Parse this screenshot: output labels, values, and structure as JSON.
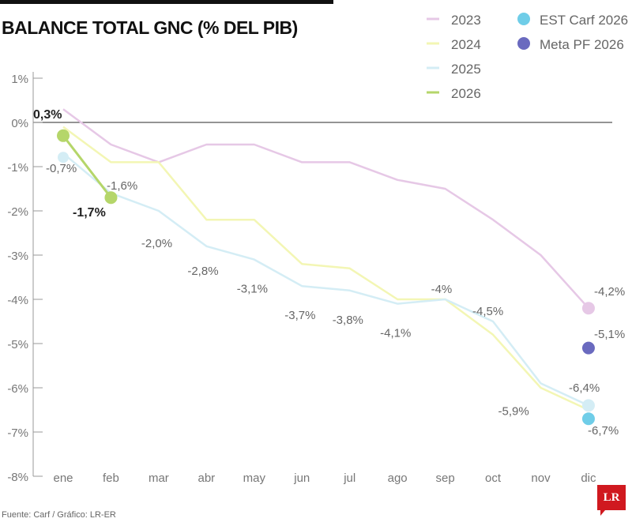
{
  "title": "BALANCE TOTAL GNC (% DEL PIB)",
  "footer": "Fuente: Carf / Gráfico: LR-ER",
  "logo": "LR",
  "chart_data": {
    "type": "line",
    "title": "BALANCE TOTAL GNC (% DEL PIB)",
    "categories": [
      "ene",
      "feb",
      "mar",
      "abr",
      "may",
      "jun",
      "jul",
      "ago",
      "sep",
      "oct",
      "nov",
      "dic"
    ],
    "ylim": [
      -8,
      1
    ],
    "yticks": [
      1,
      0,
      -1,
      -2,
      -3,
      -4,
      -5,
      -6,
      -7,
      -8
    ],
    "ytick_labels": [
      "1%",
      "0%",
      "-1%",
      "-2%",
      "-3%",
      "-4%",
      "-5%",
      "-6%",
      "-7%",
      "-8%"
    ],
    "grid": false,
    "legend_placement": "top-right",
    "series": [
      {
        "name": "2023",
        "color": "#e6c8e6",
        "values": [
          0.3,
          -0.5,
          -0.9,
          -0.5,
          -0.5,
          -0.9,
          -0.9,
          -1.3,
          -1.5,
          -2.2,
          -3.0,
          -4.2
        ]
      },
      {
        "name": "2024",
        "color": "#f3f6b4",
        "values": [
          -0.1,
          -0.9,
          -0.9,
          -2.2,
          -2.2,
          -3.2,
          -3.3,
          -4.0,
          -4.0,
          -4.8,
          -6.0,
          -6.5
        ]
      },
      {
        "name": "2025",
        "color": "#d4edf5",
        "values": [
          -0.7,
          -1.6,
          -2.0,
          -2.8,
          -3.1,
          -3.7,
          -3.8,
          -4.1,
          -4.0,
          -4.5,
          -5.9,
          -6.4
        ]
      },
      {
        "name": "2026",
        "color": "#b5d66a",
        "values": [
          -0.3,
          -1.7,
          null,
          null,
          null,
          null,
          null,
          null,
          null,
          null,
          null,
          null
        ]
      }
    ],
    "points": [
      {
        "name": "EST Carf 2026",
        "color": "#6fcde8",
        "category": "dic",
        "value": -6.7
      },
      {
        "name": "Meta PF 2026",
        "color": "#6a6abf",
        "category": "dic",
        "value": -5.1
      }
    ],
    "annotations": [
      {
        "text": "0,3%",
        "bold": true,
        "category": "ene",
        "value": 0.3
      },
      {
        "text": "-0,7%",
        "bold": false,
        "category": "ene",
        "value": -0.7
      },
      {
        "text": "-1,6%",
        "bold": false,
        "category": "feb",
        "value": -1.6
      },
      {
        "text": "-1,7%",
        "bold": true,
        "category": "feb",
        "value": -1.7
      },
      {
        "text": "-2,0%",
        "bold": false,
        "category": "mar",
        "value": -2.0
      },
      {
        "text": "-2,8%",
        "bold": false,
        "category": "abr",
        "value": -2.8
      },
      {
        "text": "-3,1%",
        "bold": false,
        "category": "may",
        "value": -3.1
      },
      {
        "text": "-3,7%",
        "bold": false,
        "category": "jun",
        "value": -3.7
      },
      {
        "text": "-3,8%",
        "bold": false,
        "category": "jul",
        "value": -3.8
      },
      {
        "text": "-4,1%",
        "bold": false,
        "category": "ago",
        "value": -4.1
      },
      {
        "text": "-4%",
        "bold": false,
        "category": "sep",
        "value": -4.0
      },
      {
        "text": "-4,5%",
        "bold": false,
        "category": "oct",
        "value": -4.5
      },
      {
        "text": "-5,9%",
        "bold": false,
        "category": "nov",
        "value": -5.9
      },
      {
        "text": "-4,2%",
        "bold": false,
        "category": "dic",
        "value": -4.2
      },
      {
        "text": "-5,1%",
        "bold": false,
        "category": "dic",
        "value": -5.1
      },
      {
        "text": "-6,4%",
        "bold": false,
        "category": "dic",
        "value": -6.4
      },
      {
        "text": "-6,7%",
        "bold": false,
        "category": "dic",
        "value": -6.7
      }
    ]
  }
}
